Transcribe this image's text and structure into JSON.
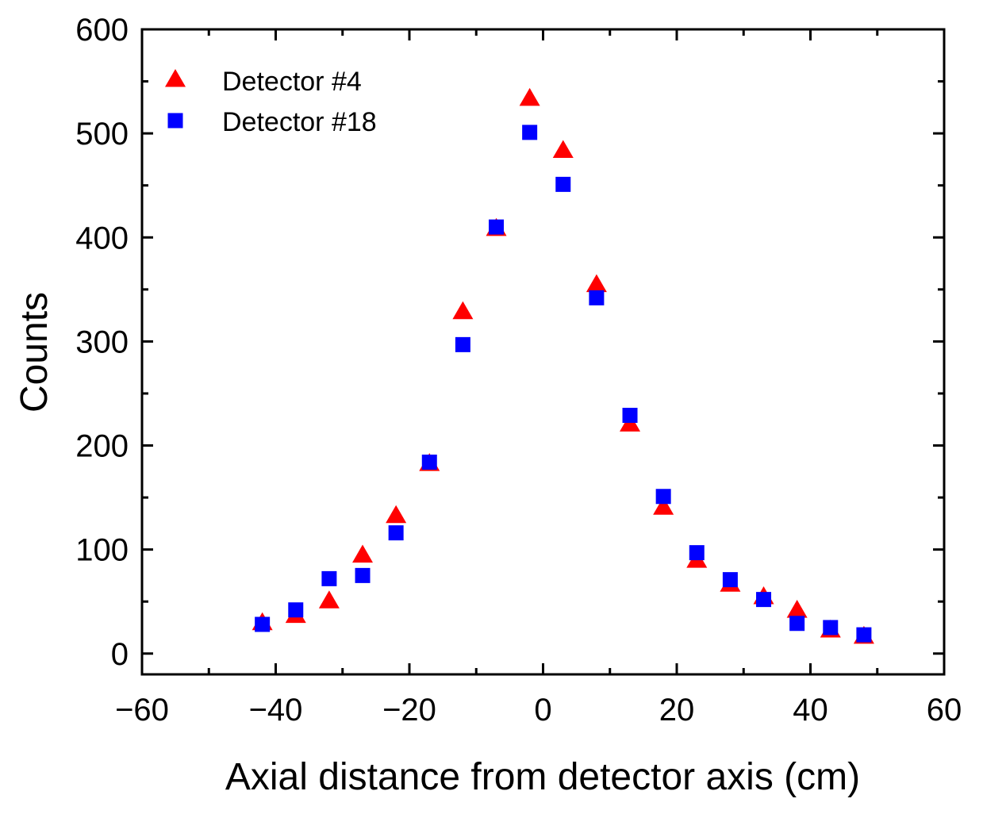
{
  "chart_data": {
    "type": "scatter",
    "title": "",
    "xlabel": "Axial distance from detector axis (cm)",
    "ylabel": "Counts",
    "xlim": [
      -60,
      60
    ],
    "ylim": [
      -20,
      600
    ],
    "xticks": [
      -60,
      -40,
      -20,
      0,
      20,
      40,
      60
    ],
    "xtick_labels": [
      "−60",
      "−40",
      "−20",
      "0",
      "20",
      "40",
      "60"
    ],
    "yticks": [
      0,
      100,
      200,
      300,
      400,
      500,
      600
    ],
    "ytick_labels": [
      "0",
      "100",
      "200",
      "300",
      "400",
      "500",
      "600"
    ],
    "grid": false,
    "legend_position": "top-left",
    "series": [
      {
        "name": "Detector #4",
        "marker": "triangle",
        "color": "#ff0000",
        "x": [
          -42,
          -37,
          -32,
          -27,
          -22,
          -17,
          -12,
          -7,
          -2,
          3,
          8,
          13,
          18,
          23,
          28,
          33,
          38,
          43,
          48
        ],
        "y": [
          29,
          36,
          50,
          94,
          132,
          182,
          328,
          408,
          533,
          483,
          354,
          220,
          140,
          89,
          66,
          54,
          41,
          22,
          16
        ]
      },
      {
        "name": "Detector #18",
        "marker": "square",
        "color": "#0000ff",
        "x": [
          -42,
          -37,
          -32,
          -27,
          -22,
          -17,
          -12,
          -7,
          -2,
          3,
          8,
          13,
          18,
          23,
          28,
          33,
          38,
          43,
          48
        ],
        "y": [
          28,
          42,
          72,
          75,
          116,
          184,
          297,
          410,
          501,
          451,
          342,
          229,
          151,
          97,
          71,
          52,
          29,
          25,
          18
        ]
      }
    ]
  }
}
